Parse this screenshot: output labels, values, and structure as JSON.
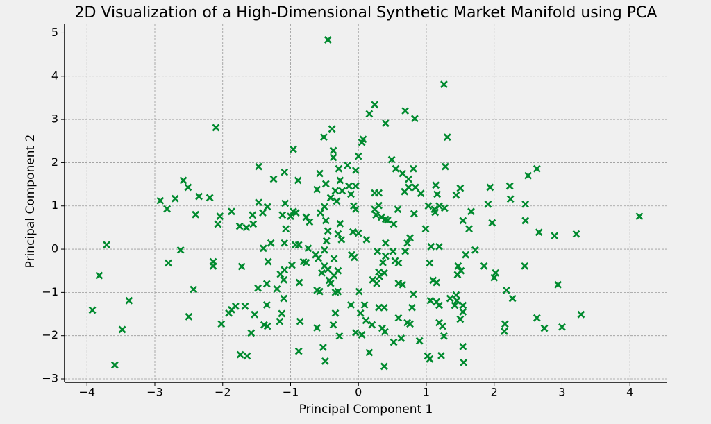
{
  "chart_data": {
    "type": "scatter",
    "title": "2D Visualization of a High-Dimensional Synthetic Market Manifold using PCA",
    "x_label": "Principal Component 1",
    "y_label": "Principal Component 2",
    "marker": "x",
    "color": "#008a2e",
    "grid": true,
    "xlim": [
      -4.33,
      4.54
    ],
    "ylim": [
      -3.08,
      5.2
    ],
    "xticks": [
      {
        "value": -4,
        "label": "−4"
      },
      {
        "value": -3,
        "label": "−3"
      },
      {
        "value": -2,
        "label": "−2"
      },
      {
        "value": -1,
        "label": "−1"
      },
      0,
      1,
      2,
      3,
      4
    ],
    "yticks": [
      {
        "value": -3,
        "label": "−3"
      },
      {
        "value": -2,
        "label": "−2"
      },
      {
        "value": -1,
        "label": "−1"
      },
      0,
      1,
      2,
      3,
      4,
      5
    ],
    "x": [
      -0.45,
      1.26,
      0.24,
      0.69,
      0.16,
      0.83,
      0.4,
      -2.1,
      -0.39,
      -0.51,
      1.31,
      0.07,
      0.05,
      -0.96,
      -0.37,
      -0.37,
      0,
      0.49,
      -1.47,
      -0.16,
      0.55,
      0.81,
      1.28,
      2.63,
      -1.09,
      -0.57,
      -0.29,
      -0.04,
      0.65,
      0.74,
      2.5,
      -1.25,
      -0.89,
      -2.58,
      -2.51,
      -0.48,
      -0.27,
      -0.14,
      -0.04,
      0.74,
      0.84,
      1.14,
      1.94,
      2.23,
      -0.61,
      -0.34,
      -0.24,
      -0.11,
      0.24,
      0.3,
      0.68,
      0.92,
      1.16,
      1.5,
      -2.7,
      -2.92,
      -2.35,
      -2.19,
      -0.41,
      -0.32,
      1.44,
      2.24,
      -1.47,
      -1.08,
      -2.82,
      -1.34,
      -0.5,
      -0.07,
      -0.04,
      0.3,
      0.24,
      1.03,
      1.12,
      1.19,
      1.27,
      1.66,
      1.91,
      2.46,
      -2.4,
      -2.04,
      -1.87,
      -1.56,
      -1.41,
      -0.96,
      -0.92,
      -1.12,
      -0.56,
      0.26,
      0.58,
      0.82,
      1.13,
      -2.07,
      -1.75,
      -1.65,
      -1.55,
      -1.0,
      -0.77,
      -0.72,
      -0.48,
      -0.27,
      0.34,
      0.4,
      0.52,
      0.43,
      0.99,
      1.54,
      1.63,
      1.97,
      2.46,
      4.14,
      -1.07,
      -0.08,
      0,
      -0.45,
      -0.3,
      2.66,
      2.89,
      3.21,
      -3.71,
      -2.62,
      -1.29,
      -1.09,
      -0.93,
      -0.88,
      -1.4,
      -0.74,
      -0.47,
      -0.25,
      0.12,
      0.4,
      0.76,
      0.72,
      1.07,
      1.19,
      1.72,
      1.58,
      -0.5,
      -0.1,
      -0.06,
      0.28,
      0.51,
      0.69,
      -0.63,
      -0.59,
      -1.33,
      -2.14,
      -2.14,
      -2.8,
      -0.81,
      -0.77,
      -0.36,
      0.4,
      0.36,
      0.54,
      0.59,
      1.05,
      1.85,
      1.47,
      2.45,
      -1.72,
      -1.09,
      -0.98,
      -0.5,
      -0.45,
      -0.3,
      -0.36,
      0.3,
      0.38,
      0.31,
      1.51,
      1.46,
      2.02,
      2.0,
      -3.82,
      -1.15,
      -1.1,
      -0.54,
      0.21,
      0.27,
      0.59,
      0.65,
      1.1,
      1.15,
      -0.87,
      -1.35,
      -0.43,
      -0.41,
      2.94,
      -1.48,
      -1.2,
      -2.43,
      -0.61,
      -0.57,
      -0.3,
      -0.34,
      0.01,
      2.18,
      0.81,
      1.44,
      2.27,
      -1.1,
      -3.38,
      1.06,
      1.15,
      1.35,
      1.45,
      1.42,
      1.54,
      -1.35,
      -0.11,
      0.09,
      0.3,
      0.38,
      -1.67,
      -1.81,
      -1.87,
      -3.92,
      0.79,
      1.19,
      1.54,
      -1.91,
      -1.53,
      -1.13,
      -0.34,
      0.03,
      3.28,
      0.59,
      -2.5,
      2.63,
      -0.86,
      -1.16,
      1.5,
      0.72,
      0.76,
      0.11,
      -2.02,
      -1.39,
      -1.34,
      1.19,
      1.24,
      2.16,
      2.15,
      -0.61,
      -0.37,
      0.2,
      0.35,
      0.39,
      3.0,
      2.74,
      -3.48,
      -1.58,
      -0.04,
      0.05,
      -0.28,
      0.63,
      0.9,
      1.26,
      0.52,
      1.54,
      -0.52,
      -0.88,
      0.16,
      -1.74,
      -1.64,
      1.22,
      1.02,
      1.05,
      -0.49,
      1.55,
      0.38,
      -3.59
    ],
    "values": [
      4.84,
      3.81,
      3.34,
      3.2,
      3.13,
      3.02,
      2.91,
      2.81,
      2.78,
      2.59,
      2.59,
      2.54,
      2.47,
      2.31,
      2.28,
      2.12,
      2.15,
      2.07,
      1.91,
      1.94,
      1.86,
      1.86,
      1.91,
      1.86,
      1.78,
      1.75,
      1.86,
      1.82,
      1.75,
      1.62,
      1.7,
      1.62,
      1.59,
      1.59,
      1.43,
      1.51,
      1.59,
      1.46,
      1.46,
      1.43,
      1.43,
      1.48,
      1.43,
      1.46,
      1.38,
      1.35,
      1.35,
      1.27,
      1.3,
      1.3,
      1.33,
      1.29,
      1.27,
      1.41,
      1.17,
      1.12,
      1.22,
      1.19,
      1.19,
      1.11,
      1.25,
      1.16,
      1.08,
      1.06,
      0.93,
      0.98,
      0.98,
      1.0,
      0.92,
      1.01,
      0.92,
      1.0,
      0.92,
      1.0,
      0.95,
      0.87,
      1.04,
      1.04,
      0.8,
      0.76,
      0.87,
      0.79,
      0.84,
      0.87,
      0.84,
      0.79,
      0.84,
      0.79,
      0.92,
      0.82,
      0.85,
      0.58,
      0.53,
      0.5,
      0.58,
      0.76,
      0.74,
      0.63,
      0.66,
      0.59,
      0.74,
      0.69,
      0.58,
      0.67,
      0.47,
      0.66,
      0.47,
      0.61,
      0.66,
      0.76,
      0.47,
      0.4,
      0.37,
      0.42,
      0.35,
      0.39,
      0.31,
      0.35,
      0.1,
      -0.02,
      0.14,
      0.14,
      0.1,
      0.1,
      0.02,
      0.02,
      0.19,
      0.22,
      0.22,
      0.14,
      0.26,
      0.14,
      0.06,
      0.06,
      -0.02,
      -0.13,
      -0.02,
      -0.13,
      -0.19,
      -0.05,
      -0.05,
      -0.05,
      -0.13,
      -0.21,
      -0.29,
      -0.29,
      -0.39,
      -0.32,
      -0.29,
      -0.31,
      -0.22,
      -0.16,
      -0.31,
      -0.27,
      -0.32,
      -0.32,
      -0.39,
      -0.39,
      -0.39,
      -0.4,
      -0.48,
      -0.37,
      -0.39,
      -0.47,
      -0.5,
      -0.61,
      -0.53,
      -0.55,
      -0.63,
      -0.5,
      -0.59,
      -0.55,
      -0.66,
      -0.61,
      -0.58,
      -0.71,
      -0.55,
      -0.71,
      -0.79,
      -0.79,
      -0.82,
      -0.72,
      -0.77,
      -0.77,
      -0.8,
      -0.72,
      -0.79,
      -0.82,
      -0.9,
      -0.92,
      -0.93,
      -0.95,
      -0.98,
      -0.98,
      -1.0,
      -0.98,
      -0.95,
      -1.04,
      -1.06,
      -1.14,
      -1.14,
      -1.19,
      -1.19,
      -1.22,
      -1.14,
      -1.19,
      -1.3,
      -1.3,
      -1.29,
      -1.29,
      -1.29,
      -1.35,
      -1.35,
      -1.32,
      -1.32,
      -1.4,
      -1.41,
      -1.35,
      -1.3,
      -1.45,
      -1.48,
      -1.51,
      -1.49,
      -1.48,
      -1.48,
      -1.51,
      -1.59,
      -1.56,
      -1.59,
      -1.67,
      -1.67,
      -1.62,
      -1.7,
      -1.73,
      -1.65,
      -1.73,
      -1.75,
      -1.78,
      -1.7,
      -1.78,
      -1.73,
      -1.9,
      -1.82,
      -1.75,
      -1.75,
      -1.83,
      -1.91,
      -1.8,
      -1.83,
      -1.86,
      -1.94,
      -1.93,
      -1.98,
      -2.01,
      -2.06,
      -2.12,
      -2.01,
      -2.15,
      -2.25,
      -2.27,
      -2.36,
      -2.39,
      -2.44,
      -2.47,
      -2.46,
      -2.47,
      -2.54,
      -2.59,
      -2.62,
      -2.71,
      -2.68
    ]
  }
}
